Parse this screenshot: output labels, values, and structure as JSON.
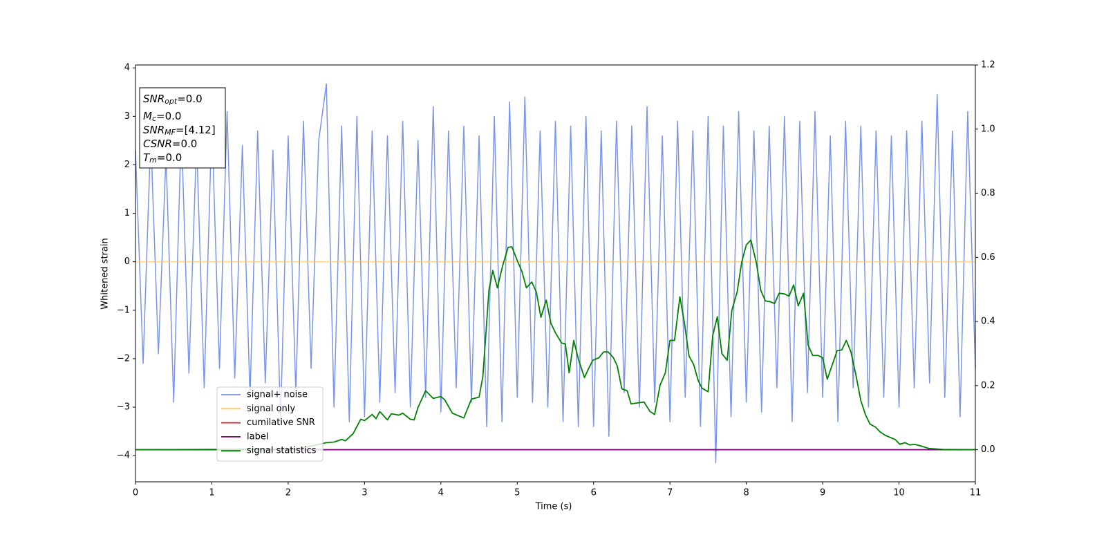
{
  "chart_data": {
    "type": "line",
    "xlabel": "Time (s)",
    "ylabel": "Whitened strain",
    "xlim": [
      0,
      11
    ],
    "xticks": [
      0,
      1,
      2,
      3,
      4,
      5,
      6,
      7,
      8,
      9,
      10,
      11
    ],
    "ylim": [
      -4.54,
      4.06
    ],
    "yticks": [
      {
        "value": -4,
        "label": "−4"
      },
      {
        "value": -3,
        "label": "−3"
      },
      {
        "value": -2,
        "label": "−2"
      },
      {
        "value": -1,
        "label": "−1"
      },
      0,
      1,
      2,
      3,
      4
    ],
    "y2lim": [
      -0.1,
      1.2
    ],
    "y2ticks": [
      {
        "value": 0,
        "label": "0.0"
      },
      {
        "value": 0.2,
        "label": "0.2"
      },
      {
        "value": 0.4,
        "label": "0.4"
      },
      {
        "value": 0.6,
        "label": "0.6"
      },
      {
        "value": 0.8,
        "label": "0.8"
      },
      {
        "value": 1,
        "label": "1.0"
      },
      {
        "value": 1.2,
        "label": "1.2"
      }
    ],
    "legend_loc": "best",
    "annotation": [
      {
        "name": "SNR",
        "sub": "opt",
        "value": "=0.0"
      },
      {
        "name": "M",
        "sub": "c",
        "value": "=0.0"
      },
      {
        "name": "SNR",
        "sub": "MF",
        "value": "=[4.12]"
      },
      {
        "name": "CSNR",
        "value": "=0.0"
      },
      {
        "name": "T",
        "sub": "m",
        "value": "=0.0"
      }
    ],
    "series": [
      {
        "name": "signal+ noise",
        "color": "#7b94e8",
        "axis": "y",
        "x": [
          0,
          0.1,
          0.2,
          0.3,
          0.4,
          0.5,
          0.6,
          0.7,
          0.8,
          0.9,
          1,
          1.1,
          1.2,
          1.3,
          1.4,
          1.5,
          1.6,
          1.7,
          1.8,
          1.9,
          2,
          2.1,
          2.2,
          2.3,
          2.4,
          2.5,
          2.6,
          2.7,
          2.8,
          2.9,
          3,
          3.1,
          3.2,
          3.3,
          3.4,
          3.5,
          3.6,
          3.7,
          3.8,
          3.9,
          4,
          4.1,
          4.2,
          4.3,
          4.4,
          4.5,
          4.6,
          4.7,
          4.8,
          4.9,
          5,
          5.1,
          5.2,
          5.3,
          5.4,
          5.5,
          5.6,
          5.7,
          5.8,
          5.9,
          6,
          6.1,
          6.2,
          6.3,
          6.4,
          6.5,
          6.6,
          6.7,
          6.8,
          6.9,
          7,
          7.1,
          7.2,
          7.3,
          7.4,
          7.5,
          7.6,
          7.7,
          7.8,
          7.9,
          8,
          8.1,
          8.2,
          8.3,
          8.4,
          8.5,
          8.6,
          8.7,
          8.8,
          8.9,
          9,
          9.1,
          9.2,
          9.3,
          9.4,
          9.5,
          9.6,
          9.7,
          9.8,
          9.9,
          10,
          10.1,
          10.2,
          10.3,
          10.4,
          10.5,
          10.6,
          10.7,
          10.8,
          10.9,
          11
        ],
        "values": [
          2.3,
          -2.1,
          2.6,
          -1.9,
          2.2,
          -2.9,
          2.8,
          -2.3,
          2.5,
          -2.6,
          2.9,
          -2.2,
          3.1,
          -2.4,
          2.4,
          -2.8,
          2.7,
          -2.5,
          2.3,
          -3.3,
          2.6,
          -2.7,
          2.9,
          -2.2,
          2.5,
          3.67,
          -3.0,
          2.8,
          -3.3,
          3.0,
          -3.2,
          2.7,
          -2.9,
          2.6,
          -2.7,
          2.9,
          -3.0,
          2.5,
          -2.8,
          3.2,
          -3.1,
          2.7,
          -2.6,
          2.8,
          -2.9,
          2.6,
          -3.4,
          3.0,
          -3.3,
          3.3,
          -2.8,
          3.4,
          -2.9,
          2.7,
          -3.0,
          2.9,
          -3.3,
          2.8,
          -3.4,
          3.0,
          -3.4,
          2.7,
          -3.6,
          2.9,
          -2.7,
          2.8,
          -3.0,
          3.2,
          -2.9,
          2.6,
          -3.3,
          2.9,
          -2.8,
          2.7,
          -3.4,
          3.0,
          -4.15,
          2.8,
          -3.2,
          3.1,
          -2.9,
          2.7,
          -3.1,
          2.8,
          -2.6,
          3.0,
          -3.3,
          2.9,
          -2.7,
          3.1,
          -2.8,
          2.6,
          -3.3,
          2.9,
          -2.6,
          2.8,
          -3.0,
          2.7,
          -2.8,
          2.6,
          -3.0,
          2.7,
          -2.6,
          2.9,
          -2.5,
          3.45,
          -2.8,
          2.7,
          -3.2,
          3.1,
          -2.2
        ]
      },
      {
        "name": "signal only",
        "color": "#ffc35c",
        "axis": "y",
        "x": [
          0,
          11
        ],
        "values": [
          0,
          0
        ]
      },
      {
        "name": "cumilative SNR",
        "color": "#e31a1c",
        "axis": "y2",
        "x": [
          0,
          11
        ],
        "values": [
          0,
          0
        ]
      },
      {
        "name": "label",
        "color": "#800080",
        "axis": "y2",
        "x": [
          0,
          11
        ],
        "values": [
          0,
          0
        ]
      },
      {
        "name": "signal statistics",
        "color": "#008000",
        "axis": "y2",
        "x": [
          0,
          2.0,
          2.2,
          2.5,
          2.6,
          2.7,
          2.75,
          2.85,
          2.95,
          3.0,
          3.1,
          3.15,
          3.2,
          3.3,
          3.35,
          3.45,
          3.5,
          3.6,
          3.65,
          3.7,
          3.8,
          3.9,
          4.0,
          4.05,
          4.15,
          4.3,
          4.4,
          4.5,
          4.55,
          4.63,
          4.68,
          4.74,
          4.81,
          4.88,
          4.93,
          5.0,
          5.06,
          5.12,
          5.19,
          5.25,
          5.31,
          5.38,
          5.44,
          5.5,
          5.58,
          5.63,
          5.68,
          5.74,
          5.8,
          5.88,
          5.93,
          5.99,
          6.07,
          6.13,
          6.19,
          6.26,
          6.31,
          6.37,
          6.44,
          6.49,
          6.66,
          6.74,
          6.8,
          6.87,
          6.94,
          7.0,
          7.06,
          7.13,
          7.19,
          7.25,
          7.31,
          7.37,
          7.42,
          7.5,
          7.56,
          7.62,
          7.68,
          7.75,
          7.81,
          7.88,
          7.94,
          8.0,
          8.06,
          8.13,
          8.19,
          8.25,
          8.31,
          8.37,
          8.43,
          8.5,
          8.56,
          8.62,
          8.68,
          8.75,
          8.81,
          8.87,
          8.94,
          9.0,
          9.06,
          9.12,
          9.19,
          9.25,
          9.31,
          9.37,
          9.43,
          9.5,
          9.56,
          9.62,
          9.69,
          9.75,
          9.82,
          9.95,
          10.01,
          10.08,
          10.14,
          10.2,
          10.27,
          10.39,
          10.58,
          11
        ],
        "values": [
          0,
          0.002,
          0.006,
          0.022,
          0.024,
          0.032,
          0.028,
          0.05,
          0.095,
          0.091,
          0.11,
          0.097,
          0.119,
          0.093,
          0.112,
          0.108,
          0.114,
          0.095,
          0.093,
          0.132,
          0.184,
          0.16,
          0.166,
          0.156,
          0.114,
          0.099,
          0.158,
          0.164,
          0.229,
          0.499,
          0.559,
          0.505,
          0.575,
          0.631,
          0.633,
          0.59,
          0.557,
          0.505,
          0.523,
          0.492,
          0.413,
          0.467,
          0.395,
          0.365,
          0.333,
          0.33,
          0.24,
          0.341,
          0.283,
          0.225,
          0.251,
          0.279,
          0.287,
          0.305,
          0.305,
          0.287,
          0.261,
          0.19,
          0.184,
          0.143,
          0.149,
          0.119,
          0.11,
          0.201,
          0.24,
          0.341,
          0.341,
          0.477,
          0.395,
          0.292,
          0.266,
          0.216,
          0.192,
          0.181,
          0.356,
          0.415,
          0.3,
          0.279,
          0.434,
          0.492,
          0.585,
          0.639,
          0.654,
          0.585,
          0.497,
          0.464,
          0.462,
          0.456,
          0.488,
          0.486,
          0.479,
          0.514,
          0.449,
          0.488,
          0.326,
          0.294,
          0.294,
          0.287,
          0.22,
          0.261,
          0.309,
          0.311,
          0.341,
          0.305,
          0.24,
          0.153,
          0.11,
          0.08,
          0.071,
          0.056,
          0.045,
          0.032,
          0.017,
          0.022,
          0.015,
          0.017,
          0.013,
          0.004,
          0.001,
          0
        ]
      }
    ]
  }
}
